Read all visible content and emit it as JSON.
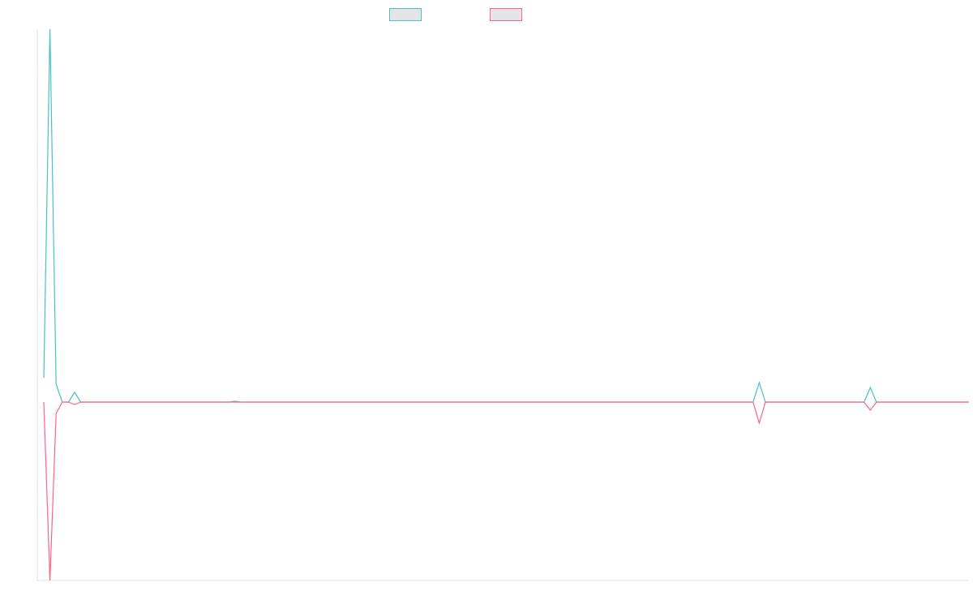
{
  "chart_data": {
    "type": "line",
    "title": "",
    "xlabel": "",
    "ylabel": "",
    "grid": false,
    "legend_position": "top",
    "x": [
      0,
      1,
      2,
      3,
      4,
      5,
      6,
      7,
      8,
      9,
      10,
      11,
      12,
      13,
      14,
      15,
      16,
      17,
      18,
      19,
      20,
      21,
      22,
      23,
      24,
      25,
      26,
      27,
      28,
      29,
      30,
      31,
      32,
      33,
      34,
      35,
      36,
      37,
      38,
      39,
      40,
      41,
      42,
      43,
      44,
      45,
      46,
      47,
      48,
      49,
      50,
      51,
      52,
      53,
      54,
      55,
      56,
      57,
      58,
      59,
      60,
      61,
      62,
      63,
      64,
      65,
      66,
      67,
      68,
      69,
      70,
      71,
      72,
      73,
      74,
      75,
      76,
      77,
      78,
      79,
      80,
      81,
      82,
      83,
      84,
      85,
      86,
      87,
      88,
      89,
      90,
      91,
      92,
      93,
      94,
      95,
      96,
      97,
      98,
      99,
      100,
      101,
      102,
      103,
      104,
      105,
      106,
      107,
      108,
      109,
      110,
      111,
      112,
      113,
      114,
      115,
      116,
      117,
      118,
      119,
      120,
      121,
      122,
      123,
      124,
      125,
      126,
      127,
      128,
      129,
      130,
      131,
      132,
      133,
      134,
      135,
      136,
      137,
      138,
      139,
      140,
      141,
      142,
      143,
      144,
      145,
      146,
      147,
      148,
      149,
      150
    ],
    "ylim": [
      -220,
      460
    ],
    "series": [
      {
        "name": "",
        "color": "#4bc0c0",
        "values": [
          30,
          460,
          22,
          0,
          0,
          12,
          0,
          0,
          0,
          0,
          0,
          0,
          0,
          0,
          0,
          0,
          0,
          0,
          0,
          0,
          0,
          0,
          0,
          0,
          0,
          0,
          0,
          0,
          0,
          0,
          0,
          1,
          0,
          0,
          0,
          0,
          0,
          0,
          0,
          0,
          0,
          0,
          0,
          0,
          0,
          0,
          0,
          0,
          0,
          0,
          0,
          0,
          0,
          0,
          0,
          0,
          0,
          0,
          0,
          0,
          0,
          0,
          0,
          0,
          0,
          0,
          0,
          0,
          0,
          0,
          0,
          0,
          0,
          0,
          0,
          0,
          0,
          0,
          0,
          0,
          0,
          0,
          0,
          0,
          0,
          0,
          0,
          0,
          0,
          0,
          0,
          0,
          0,
          0,
          0,
          0,
          0,
          0,
          0,
          0,
          0,
          0,
          0,
          0,
          0,
          0,
          0,
          0,
          0,
          0,
          0,
          0,
          0,
          0,
          0,
          0,
          24,
          0,
          0,
          0,
          0,
          0,
          0,
          0,
          0,
          0,
          0,
          0,
          0,
          0,
          0,
          0,
          0,
          0,
          18,
          0,
          0,
          0,
          0,
          0,
          0,
          0,
          0,
          0,
          0,
          0,
          0,
          0,
          0,
          0,
          0
        ]
      },
      {
        "name": "",
        "color": "#ff6384",
        "values": [
          0,
          -220,
          -14,
          0,
          0,
          -3,
          0,
          0,
          0,
          0,
          0,
          0,
          0,
          0,
          0,
          0,
          0,
          0,
          0,
          0,
          0,
          0,
          0,
          0,
          0,
          0,
          0,
          0,
          0,
          0,
          0,
          0,
          0,
          0,
          0,
          0,
          0,
          0,
          0,
          0,
          0,
          0,
          0,
          0,
          0,
          0,
          0,
          0,
          0,
          0,
          0,
          0,
          0,
          0,
          0,
          0,
          0,
          0,
          0,
          0,
          0,
          0,
          0,
          0,
          0,
          0,
          0,
          0,
          0,
          0,
          0,
          0,
          0,
          0,
          0,
          0,
          0,
          0,
          0,
          0,
          0,
          0,
          0,
          0,
          0,
          0,
          0,
          0,
          0,
          0,
          0,
          0,
          0,
          0,
          0,
          0,
          0,
          0,
          0,
          0,
          0,
          0,
          0,
          0,
          0,
          0,
          0,
          0,
          0,
          0,
          0,
          0,
          0,
          0,
          0,
          0,
          -26,
          0,
          0,
          0,
          0,
          0,
          0,
          0,
          0,
          0,
          0,
          0,
          0,
          0,
          0,
          0,
          0,
          0,
          -10,
          0,
          0,
          0,
          0,
          0,
          0,
          0,
          0,
          0,
          0,
          0,
          0,
          0,
          0,
          0,
          0
        ]
      }
    ]
  }
}
